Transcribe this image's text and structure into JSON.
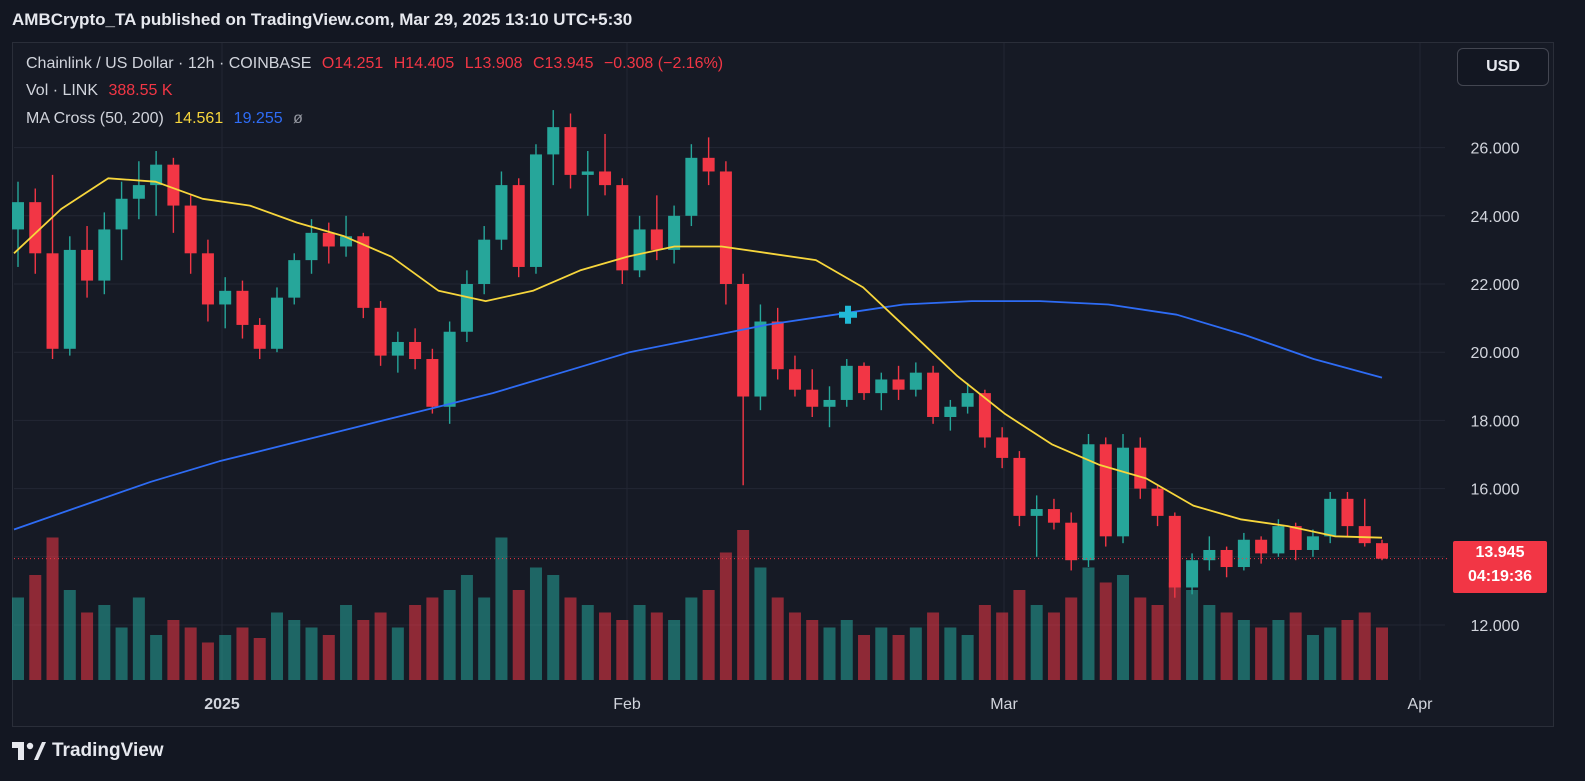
{
  "header": {
    "publisher_line": "AMBCrypto_TA published on TradingView.com, Mar 29, 2025 13:10 UTC+5:30"
  },
  "legend": {
    "symbol": "Chainlink / US Dollar · 12h · COINBASE",
    "open": "O14.251",
    "high": "H14.405",
    "low": "L13.908",
    "close": "C13.945",
    "change": "−0.308 (−2.16%)",
    "vol_label": "Vol · LINK",
    "vol_value": "388.55 K",
    "ma_label": "MA Cross (50, 200)",
    "ma50": "14.561",
    "ma200": "19.255",
    "ma_extra": "ø"
  },
  "currency_button": "USD",
  "last_price": {
    "price": "13.945",
    "countdown": "04:19:36"
  },
  "footer": {
    "brand": "TradingView"
  },
  "colors": {
    "up": "#26a69a",
    "down": "#f23645",
    "ma50": "#f7d63c",
    "ma200": "#2e6cf5",
    "cross": "#21b9d6"
  },
  "chart_data": {
    "type": "candlestick",
    "interval": "12h",
    "y_ticks": [
      "12.000",
      "14.000",
      "16.000",
      "18.000",
      "20.000",
      "22.000",
      "24.000",
      "26.000"
    ],
    "ylim": [
      10.4,
      28.8
    ],
    "x_ticks": [
      "2025",
      "Feb",
      "Mar",
      "Apr"
    ],
    "legend_position": "top-left",
    "grid": true,
    "candles_ohlc_approx": [
      [
        23.6,
        25.0,
        22.5,
        24.4
      ],
      [
        24.4,
        24.8,
        22.3,
        22.9
      ],
      [
        22.9,
        25.2,
        19.8,
        20.1
      ],
      [
        20.1,
        23.4,
        19.9,
        23.0
      ],
      [
        23.0,
        23.7,
        21.6,
        22.1
      ],
      [
        22.1,
        24.1,
        21.7,
        23.6
      ],
      [
        23.6,
        25.0,
        22.7,
        24.5
      ],
      [
        24.5,
        25.6,
        23.9,
        24.9
      ],
      [
        24.9,
        25.9,
        24.0,
        25.5
      ],
      [
        25.5,
        25.7,
        23.5,
        24.3
      ],
      [
        24.3,
        24.6,
        22.3,
        22.9
      ],
      [
        22.9,
        23.3,
        20.9,
        21.4
      ],
      [
        21.4,
        22.2,
        20.7,
        21.8
      ],
      [
        21.8,
        22.1,
        20.4,
        20.8
      ],
      [
        20.8,
        21.0,
        19.8,
        20.1
      ],
      [
        20.1,
        21.9,
        20.0,
        21.6
      ],
      [
        21.6,
        22.9,
        21.4,
        22.7
      ],
      [
        22.7,
        23.9,
        22.3,
        23.5
      ],
      [
        23.5,
        23.8,
        22.6,
        23.1
      ],
      [
        23.1,
        24.0,
        22.8,
        23.4
      ],
      [
        23.4,
        23.5,
        21.0,
        21.3
      ],
      [
        21.3,
        21.5,
        19.6,
        19.9
      ],
      [
        19.9,
        20.6,
        19.4,
        20.3
      ],
      [
        20.3,
        20.7,
        19.5,
        19.8
      ],
      [
        19.8,
        20.1,
        18.2,
        18.4
      ],
      [
        18.4,
        20.9,
        17.9,
        20.6
      ],
      [
        20.6,
        22.4,
        20.3,
        22.0
      ],
      [
        22.0,
        23.7,
        21.7,
        23.3
      ],
      [
        23.3,
        25.3,
        23.0,
        24.9
      ],
      [
        24.9,
        25.1,
        22.2,
        22.5
      ],
      [
        22.5,
        26.1,
        22.3,
        25.8
      ],
      [
        25.8,
        27.1,
        24.9,
        26.6
      ],
      [
        26.6,
        27.0,
        24.8,
        25.2
      ],
      [
        25.2,
        25.9,
        24.0,
        25.3
      ],
      [
        25.3,
        26.4,
        24.6,
        24.9
      ],
      [
        24.9,
        25.1,
        22.0,
        22.4
      ],
      [
        22.4,
        24.0,
        22.2,
        23.6
      ],
      [
        23.6,
        24.6,
        22.7,
        23.0
      ],
      [
        23.0,
        24.3,
        22.6,
        24.0
      ],
      [
        24.0,
        26.1,
        23.7,
        25.7
      ],
      [
        25.7,
        26.3,
        24.9,
        25.3
      ],
      [
        25.3,
        25.6,
        21.4,
        22.0
      ],
      [
        22.0,
        22.3,
        16.1,
        18.7
      ],
      [
        18.7,
        21.4,
        18.3,
        20.9
      ],
      [
        20.9,
        21.3,
        19.2,
        19.5
      ],
      [
        19.5,
        19.9,
        18.7,
        18.9
      ],
      [
        18.9,
        19.5,
        18.1,
        18.4
      ],
      [
        18.4,
        19.0,
        17.8,
        18.6
      ],
      [
        18.6,
        19.8,
        18.4,
        19.6
      ],
      [
        19.6,
        19.7,
        18.6,
        18.8
      ],
      [
        18.8,
        19.4,
        18.3,
        19.2
      ],
      [
        19.2,
        19.6,
        18.6,
        18.9
      ],
      [
        18.9,
        19.7,
        18.7,
        19.4
      ],
      [
        19.4,
        19.6,
        17.9,
        18.1
      ],
      [
        18.1,
        18.6,
        17.7,
        18.4
      ],
      [
        18.4,
        19.1,
        18.2,
        18.8
      ],
      [
        18.8,
        18.9,
        17.2,
        17.5
      ],
      [
        17.5,
        17.8,
        16.6,
        16.9
      ],
      [
        16.9,
        17.1,
        14.9,
        15.2
      ],
      [
        15.2,
        15.8,
        14.0,
        15.4
      ],
      [
        15.4,
        15.7,
        14.8,
        15.0
      ],
      [
        15.0,
        15.3,
        13.6,
        13.9
      ],
      [
        13.9,
        17.6,
        13.7,
        17.3
      ],
      [
        17.3,
        17.5,
        14.3,
        14.6
      ],
      [
        14.6,
        17.6,
        14.4,
        17.2
      ],
      [
        17.2,
        17.5,
        15.7,
        16.0
      ],
      [
        16.0,
        16.1,
        14.9,
        15.2
      ],
      [
        15.2,
        15.3,
        12.8,
        13.1
      ],
      [
        13.1,
        14.1,
        12.9,
        13.9
      ],
      [
        13.9,
        14.6,
        13.6,
        14.2
      ],
      [
        14.2,
        14.3,
        13.4,
        13.7
      ],
      [
        13.7,
        14.7,
        13.6,
        14.5
      ],
      [
        14.5,
        14.6,
        13.8,
        14.1
      ],
      [
        14.1,
        15.1,
        14.0,
        14.9
      ],
      [
        14.9,
        15.0,
        13.9,
        14.2
      ],
      [
        14.2,
        14.8,
        14.0,
        14.6
      ],
      [
        14.6,
        15.9,
        14.4,
        15.7
      ],
      [
        15.7,
        15.9,
        14.6,
        14.9
      ],
      [
        14.9,
        15.7,
        14.3,
        14.4
      ],
      [
        14.4,
        14.5,
        13.9,
        13.945
      ]
    ],
    "ma50_approx": [
      22.9,
      24.2,
      25.1,
      25.0,
      24.5,
      24.3,
      23.8,
      23.4,
      22.8,
      21.8,
      21.5,
      21.8,
      22.4,
      22.8,
      23.1,
      23.1,
      22.9,
      22.7,
      21.9,
      20.6,
      19.3,
      18.2,
      17.3,
      16.7,
      16.3,
      15.5,
      15.1,
      14.9,
      14.6,
      14.561
    ],
    "ma200_approx": [
      14.8,
      15.5,
      16.2,
      16.8,
      17.3,
      17.8,
      18.3,
      18.8,
      19.4,
      20.0,
      20.4,
      20.8,
      21.1,
      21.4,
      21.5,
      21.5,
      21.4,
      21.1,
      20.5,
      19.8,
      19.255
    ],
    "annotations": [
      "golden/death cross marker near Feb 15 at ~21.1"
    ]
  }
}
